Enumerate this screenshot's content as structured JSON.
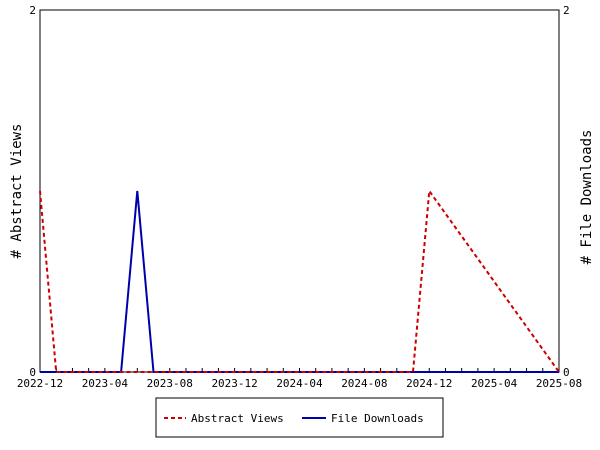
{
  "chart_data": {
    "type": "line",
    "x_axis": {
      "type": "date",
      "range": [
        "2022-12",
        "2025-08"
      ],
      "tick_labels": [
        "2022-12",
        "2023-04",
        "2023-08",
        "2023-12",
        "2024-04",
        "2024-08",
        "2024-12",
        "2025-04",
        "2025-08"
      ],
      "tick_label_positions": [
        "2022-12",
        "2023-04",
        "2023-08",
        "2023-12",
        "2024-04",
        "2024-08",
        "2024-12",
        "2025-04",
        "2025-08"
      ]
    },
    "y_left": {
      "label": "# Abstract Views",
      "range": [
        0,
        2
      ],
      "tick_labels": [
        "0",
        "2"
      ]
    },
    "y_right": {
      "label": "# File Downloads",
      "range": [
        0,
        2
      ],
      "tick_labels": [
        "0",
        "2"
      ]
    },
    "grid": false,
    "legend_position": "bottom",
    "series": [
      {
        "name": "Abstract Views",
        "axis": "left",
        "color": "#cc0000",
        "style": "dashed",
        "x": [
          "2022-12",
          "2023-01",
          "2024-10",
          "2024-11",
          "2024-12",
          "2025-08"
        ],
        "values": [
          1,
          0,
          0,
          0,
          1,
          0
        ]
      },
      {
        "name": "File Downloads",
        "axis": "right",
        "color": "#0000aa",
        "style": "solid",
        "x": [
          "2022-12",
          "2023-05",
          "2023-06",
          "2023-07",
          "2025-08"
        ],
        "values": [
          0,
          0,
          1,
          0,
          0
        ]
      }
    ]
  }
}
